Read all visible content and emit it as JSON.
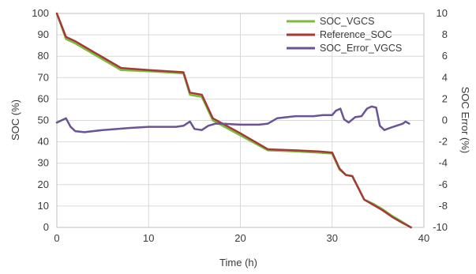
{
  "chart_data": {
    "type": "line",
    "xlabel": "Time (h)",
    "ylabel": "SOC (%)",
    "y2label": "SOC Error (%)",
    "xlim": [
      0,
      40
    ],
    "ylim": [
      0,
      100
    ],
    "y2lim": [
      -10,
      10
    ],
    "xticks": [
      0,
      10,
      20,
      30,
      40
    ],
    "yticks": [
      0,
      10,
      20,
      30,
      40,
      50,
      60,
      70,
      80,
      90,
      100
    ],
    "y2ticks": [
      -10,
      -8,
      -6,
      -4,
      -2,
      0,
      2,
      4,
      6,
      8,
      10
    ],
    "grid": true,
    "legend_position": "top-right",
    "series": [
      {
        "name": "SOC_VGCS",
        "axis": "left",
        "color": "#7dbb3c",
        "x": [
          0,
          1,
          2,
          4,
          7,
          10,
          13.8,
          14.5,
          15.8,
          17,
          20,
          23,
          26,
          28.5,
          30,
          30.8,
          31.5,
          32.2,
          33.5,
          34.5,
          35.5,
          36.5,
          37.5,
          38.6
        ],
        "y": [
          100,
          88,
          86,
          81,
          73.5,
          73,
          72,
          62,
          61,
          50,
          43,
          36,
          35.5,
          35,
          34.5,
          27,
          24.5,
          24,
          13,
          11,
          8.5,
          5.5,
          3,
          0
        ]
      },
      {
        "name": "Reference_SOC",
        "axis": "left",
        "color": "#a23a36",
        "x": [
          0,
          1,
          2,
          4,
          7,
          10,
          13.8,
          14.5,
          15.8,
          17,
          20,
          23,
          26,
          28.5,
          30,
          30.8,
          31.5,
          32.2,
          33.5,
          34.5,
          35.5,
          36.5,
          37.5,
          38.6
        ],
        "y": [
          100,
          89,
          87,
          82,
          74.5,
          73.5,
          72.5,
          63,
          62,
          51,
          44,
          36.5,
          36,
          35.5,
          35,
          27.5,
          24.5,
          24,
          13,
          10.5,
          8,
          5,
          2.5,
          0
        ]
      },
      {
        "name": "SOC_Error_VGCS",
        "axis": "right",
        "color": "#6a5396",
        "x": [
          0,
          0.5,
          1,
          1.5,
          2,
          3,
          5,
          8,
          10,
          13,
          13.8,
          14.5,
          15,
          15.8,
          16.5,
          17.3,
          18,
          20,
          22,
          23,
          24,
          26,
          28,
          29,
          30,
          30.4,
          30.9,
          31.3,
          31.8,
          32.5,
          33.2,
          33.8,
          34.3,
          34.8,
          35.2,
          35.7,
          36.3,
          37,
          37.7,
          38,
          38.4
        ],
        "y": [
          -0.2,
          0,
          0.2,
          -0.6,
          -1,
          -1.1,
          -0.9,
          -0.7,
          -0.6,
          -0.6,
          -0.5,
          -0.1,
          -0.8,
          -0.9,
          -0.5,
          -0.3,
          -0.3,
          -0.4,
          -0.4,
          -0.3,
          0.2,
          0.4,
          0.4,
          0.5,
          0.5,
          0.9,
          1.1,
          0.1,
          -0.2,
          0.3,
          0.4,
          1.1,
          1.3,
          1.2,
          -0.5,
          -0.9,
          -0.7,
          -0.5,
          -0.3,
          -0.1,
          -0.3
        ]
      }
    ]
  }
}
